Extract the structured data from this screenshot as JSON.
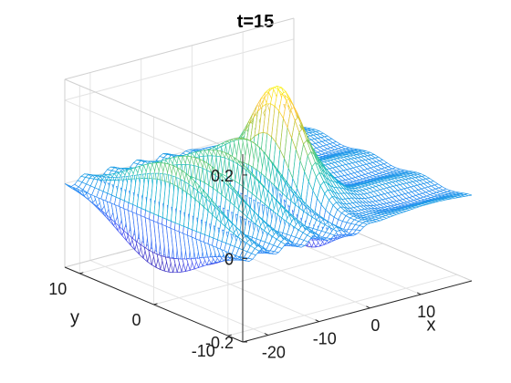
{
  "chart_data": {
    "type": "surface",
    "render": "mesh",
    "colormap": "parula",
    "title": "t=15",
    "xlabel": "x",
    "ylabel": "y",
    "zlabel": "",
    "xlim": [
      -25,
      20
    ],
    "ylim": [
      -12,
      12
    ],
    "zlim": [
      -0.2,
      0.25
    ],
    "x_ticks": [
      {
        "value": -20,
        "label": "-20"
      },
      {
        "value": -10,
        "label": "-10"
      },
      {
        "value": 0,
        "label": "0"
      },
      {
        "value": 10,
        "label": "10"
      }
    ],
    "y_ticks": [
      {
        "value": -10,
        "label": "-10"
      },
      {
        "value": 0,
        "label": "0"
      },
      {
        "value": 10,
        "label": "10"
      }
    ],
    "z_ticks": [
      {
        "value": -0.2,
        "label": "-0.2"
      },
      {
        "value": 0,
        "label": "0"
      },
      {
        "value": 0.2,
        "label": "0.2"
      }
    ],
    "grid": true,
    "surface": {
      "peak": {
        "x": 0,
        "y": 0,
        "z": 0.22
      },
      "wave_crests_x": [
        -16,
        -11,
        -6
      ],
      "wave_crest_height": 0.12,
      "trough_depth": -0.15
    }
  }
}
